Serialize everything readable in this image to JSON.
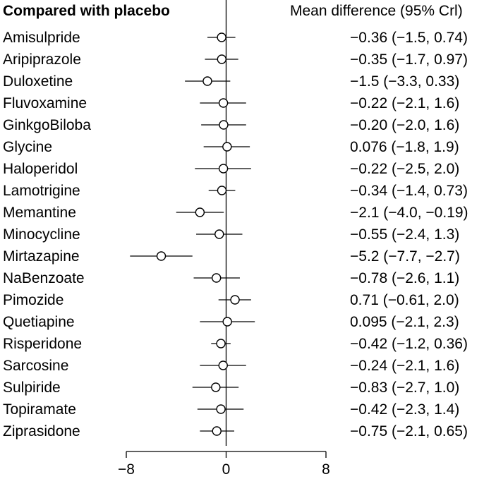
{
  "chart_data": {
    "type": "forest",
    "title": "Compared with placebo",
    "right_header": "Mean difference (95% Crl)",
    "xlim": [
      -8,
      8
    ],
    "x_ticks": [
      -8,
      0,
      8
    ],
    "x_tick_labels": [
      "−8",
      "0",
      "8"
    ],
    "reference_line": 0,
    "colors": {
      "line": "#000000",
      "marker_fill": "#ffffff",
      "text": "#000000"
    },
    "rows": [
      {
        "label": "Amisulpride",
        "mean": -0.36,
        "lower": -1.5,
        "upper": 0.74,
        "text": "−0.36 (−1.5, 0.74)"
      },
      {
        "label": "Aripiprazole",
        "mean": -0.35,
        "lower": -1.7,
        "upper": 0.97,
        "text": "−0.35 (−1.7, 0.97)"
      },
      {
        "label": "Duloxetine",
        "mean": -1.5,
        "lower": -3.3,
        "upper": 0.33,
        "text": "−1.5 (−3.3, 0.33)"
      },
      {
        "label": "Fluvoxamine",
        "mean": -0.22,
        "lower": -2.1,
        "upper": 1.6,
        "text": "−0.22 (−2.1, 1.6)"
      },
      {
        "label": "GinkgoBiloba",
        "mean": -0.2,
        "lower": -2.0,
        "upper": 1.6,
        "text": "−0.20 (−2.0, 1.6)"
      },
      {
        "label": "Glycine",
        "mean": 0.076,
        "lower": -1.8,
        "upper": 1.9,
        "text": "0.076 (−1.8, 1.9)"
      },
      {
        "label": "Haloperidol",
        "mean": -0.22,
        "lower": -2.5,
        "upper": 2.0,
        "text": "−0.22 (−2.5, 2.0)"
      },
      {
        "label": "Lamotrigine",
        "mean": -0.34,
        "lower": -1.4,
        "upper": 0.73,
        "text": "−0.34 (−1.4, 0.73)"
      },
      {
        "label": "Memantine",
        "mean": -2.1,
        "lower": -4.0,
        "upper": -0.19,
        "text": "−2.1 (−4.0, −0.19)"
      },
      {
        "label": "Minocycline",
        "mean": -0.55,
        "lower": -2.4,
        "upper": 1.3,
        "text": "−0.55 (−2.4, 1.3)"
      },
      {
        "label": "Mirtazapine",
        "mean": -5.2,
        "lower": -7.7,
        "upper": -2.7,
        "text": "−5.2 (−7.7, −2.7)"
      },
      {
        "label": "NaBenzoate",
        "mean": -0.78,
        "lower": -2.6,
        "upper": 1.1,
        "text": "−0.78 (−2.6, 1.1)"
      },
      {
        "label": "Pimozide",
        "mean": 0.71,
        "lower": -0.61,
        "upper": 2.0,
        "text": "0.71 (−0.61, 2.0)"
      },
      {
        "label": "Quetiapine",
        "mean": 0.095,
        "lower": -2.1,
        "upper": 2.3,
        "text": "0.095 (−2.1, 2.3)"
      },
      {
        "label": "Risperidone",
        "mean": -0.42,
        "lower": -1.2,
        "upper": 0.36,
        "text": "−0.42 (−1.2, 0.36)"
      },
      {
        "label": "Sarcosine",
        "mean": -0.24,
        "lower": -2.1,
        "upper": 1.6,
        "text": "−0.24 (−2.1, 1.6)"
      },
      {
        "label": "Sulpiride",
        "mean": -0.83,
        "lower": -2.7,
        "upper": 1.0,
        "text": "−0.83 (−2.7, 1.0)"
      },
      {
        "label": "Topiramate",
        "mean": -0.42,
        "lower": -2.3,
        "upper": 1.4,
        "text": "−0.42 (−2.3, 1.4)"
      },
      {
        "label": "Ziprasidone",
        "mean": -0.75,
        "lower": -2.1,
        "upper": 0.65,
        "text": "−0.75 (−2.1, 0.65)"
      }
    ]
  }
}
